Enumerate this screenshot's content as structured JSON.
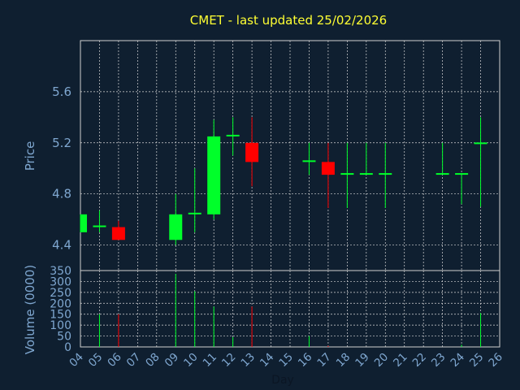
{
  "title": "CMET - last updated 25/02/2026",
  "chart_data": [
    {
      "type": "candlestick",
      "ylabel": "Price",
      "ylim": [
        4.2,
        6.0
      ],
      "yticks": [
        "4.4",
        "4.8",
        "5.2",
        "5.6"
      ],
      "grid": true,
      "colors": {
        "up": "#00ff2a",
        "down": "#ff0000",
        "background": "#0f1f30",
        "grid": "#c8c8c8",
        "axis_text": "#7fa7d0",
        "title": "#ffff33"
      },
      "series": [
        {
          "x": 4,
          "open": 4.5,
          "high": 4.64,
          "low": 4.5,
          "close": 4.64
        },
        {
          "x": 5,
          "open": 4.54,
          "high": 4.67,
          "low": 4.5,
          "close": 4.54
        },
        {
          "x": 6,
          "open": 4.54,
          "high": 4.59,
          "low": 4.44,
          "close": 4.44
        },
        {
          "x": 9,
          "open": 4.44,
          "high": 4.8,
          "low": 4.4,
          "close": 4.64
        },
        {
          "x": 10,
          "open": 4.64,
          "high": 5.0,
          "low": 4.5,
          "close": 4.64
        },
        {
          "x": 11,
          "open": 4.64,
          "high": 5.38,
          "low": 4.6,
          "close": 5.25
        },
        {
          "x": 12,
          "open": 5.25,
          "high": 5.4,
          "low": 5.1,
          "close": 5.25
        },
        {
          "x": 13,
          "open": 5.2,
          "high": 5.4,
          "low": 4.86,
          "close": 5.05
        },
        {
          "x": 16,
          "open": 5.05,
          "high": 5.2,
          "low": 4.95,
          "close": 5.05
        },
        {
          "x": 17,
          "open": 5.05,
          "high": 5.2,
          "low": 4.69,
          "close": 4.95
        },
        {
          "x": 18,
          "open": 4.95,
          "high": 5.2,
          "low": 4.69,
          "close": 4.95
        },
        {
          "x": 19,
          "open": 4.95,
          "high": 5.2,
          "low": 4.95,
          "close": 4.95
        },
        {
          "x": 20,
          "open": 4.95,
          "high": 5.2,
          "low": 4.69,
          "close": 4.95
        },
        {
          "x": 23,
          "open": 4.95,
          "high": 5.2,
          "low": 4.95,
          "close": 4.95
        },
        {
          "x": 24,
          "open": 4.95,
          "high": 4.95,
          "low": 4.72,
          "close": 4.95
        },
        {
          "x": 25,
          "open": 5.19,
          "high": 5.4,
          "low": 4.7,
          "close": 5.2
        }
      ]
    },
    {
      "type": "bar",
      "ylabel": "Volume (0000)",
      "ylim": [
        0,
        350
      ],
      "yticks": [
        "0",
        "50",
        "100",
        "150",
        "200",
        "250",
        "300",
        "350"
      ],
      "xlabel": "Day",
      "xlim": [
        4,
        26
      ],
      "xticks": [
        "04",
        "05",
        "06",
        "07",
        "08",
        "09",
        "10",
        "11",
        "12",
        "13",
        "14",
        "15",
        "16",
        "17",
        "18",
        "19",
        "20",
        "21",
        "22",
        "23",
        "24",
        "25",
        "26"
      ],
      "grid": true,
      "series": [
        {
          "x": 5,
          "value": 150,
          "color": "#00ff2a"
        },
        {
          "x": 6,
          "value": 150,
          "color": "#ff0000"
        },
        {
          "x": 9,
          "value": 335,
          "color": "#00ff2a"
        },
        {
          "x": 10,
          "value": 255,
          "color": "#00ff2a"
        },
        {
          "x": 11,
          "value": 185,
          "color": "#00ff2a"
        },
        {
          "x": 12,
          "value": 45,
          "color": "#00ff2a"
        },
        {
          "x": 13,
          "value": 185,
          "color": "#ff0000"
        },
        {
          "x": 16,
          "value": 50,
          "color": "#00ff2a"
        },
        {
          "x": 17,
          "value": 5,
          "color": "#ff0000"
        },
        {
          "x": 24,
          "value": 10,
          "color": "#00ff2a"
        },
        {
          "x": 25,
          "value": 155,
          "color": "#00ff2a"
        }
      ]
    }
  ]
}
